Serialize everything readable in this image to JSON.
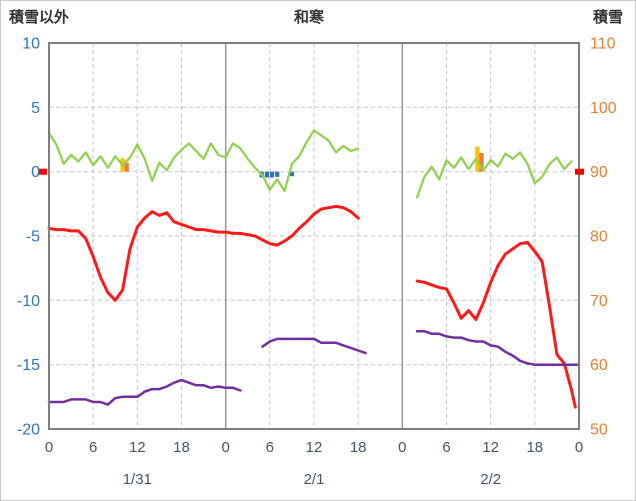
{
  "header": {
    "left_label": "積雪以外",
    "title": "和寒",
    "right_label": "積雪"
  },
  "chart_data": {
    "type": "line",
    "title": "和寒",
    "left_axis": {
      "label": "積雪以外",
      "ticks": [
        10,
        5,
        0,
        -5,
        -10,
        -15,
        -20
      ],
      "max": 10,
      "min": -20,
      "color": "#2E75B6"
    },
    "right_axis": {
      "label": "積雪",
      "ticks": [
        110,
        100,
        90,
        80,
        70,
        60,
        50
      ],
      "max": 110,
      "min": 50,
      "color": "#ED7D31"
    },
    "x_axis": {
      "hours_total": 72,
      "tick_hours": [
        0,
        6,
        12,
        18,
        24,
        30,
        36,
        42,
        48,
        54,
        60,
        66,
        72
      ],
      "tick_labels": [
        "0",
        "6",
        "12",
        "18",
        "0",
        "6",
        "12",
        "18",
        "0",
        "6",
        "12",
        "18",
        "0"
      ],
      "day_labels": [
        {
          "label": "1/31",
          "hour": 12
        },
        {
          "label": "2/1",
          "hour": 36
        },
        {
          "label": "2/2",
          "hour": 60
        }
      ],
      "color": "#44546A"
    },
    "colors": {
      "green": "#92D050",
      "red": "#FF1A1A",
      "purple": "#7030A0",
      "yellow": "#FFC000",
      "orange": "#ED7D31",
      "blue": "#2E74B5",
      "grid": "#C6C6C6",
      "frame": "#7F7F7F",
      "day_line": "#8C8C8C",
      "marker": "#FF0000"
    },
    "series": [
      {
        "name": "green-line",
        "axis": "left",
        "color": "#92D050",
        "width": 2.25,
        "segments": [
          [
            [
              0,
              3.0
            ],
            [
              1,
              2.1
            ],
            [
              2,
              0.6
            ],
            [
              3,
              1.3
            ],
            [
              4,
              0.8
            ],
            [
              5,
              1.5
            ],
            [
              6,
              0.5
            ],
            [
              7,
              1.2
            ],
            [
              8,
              0.3
            ],
            [
              9,
              1.2
            ],
            [
              10,
              0.5
            ],
            [
              11,
              1.1
            ],
            [
              12,
              2.1
            ],
            [
              13,
              1.0
            ],
            [
              14,
              -0.7
            ],
            [
              15,
              0.7
            ],
            [
              16,
              0.1
            ],
            [
              17,
              1.1
            ],
            [
              18,
              1.7
            ],
            [
              19,
              2.2
            ],
            [
              20,
              1.6
            ],
            [
              21,
              1.0
            ],
            [
              22,
              2.2
            ],
            [
              23,
              1.3
            ],
            [
              24,
              1.1
            ],
            [
              25,
              2.2
            ],
            [
              26,
              1.8
            ],
            [
              27,
              1.0
            ],
            [
              28,
              0.3
            ],
            [
              29,
              -0.3
            ],
            [
              30,
              -1.4
            ],
            [
              31,
              -0.6
            ],
            [
              32,
              -1.5
            ],
            [
              33,
              0.6
            ],
            [
              34,
              1.2
            ],
            [
              35,
              2.3
            ],
            [
              36,
              3.2
            ],
            [
              37,
              2.8
            ],
            [
              38,
              2.4
            ],
            [
              39,
              1.5
            ],
            [
              40,
              2.0
            ],
            [
              41,
              1.6
            ],
            [
              42,
              1.8
            ]
          ],
          [
            [
              50,
              -2.0
            ],
            [
              51,
              -0.4
            ],
            [
              52,
              0.4
            ],
            [
              53,
              -0.6
            ],
            [
              54,
              0.9
            ],
            [
              55,
              0.3
            ],
            [
              56,
              1.1
            ],
            [
              57,
              0.2
            ],
            [
              58,
              1.0
            ],
            [
              59,
              0.1
            ],
            [
              60,
              0.9
            ],
            [
              61,
              0.4
            ],
            [
              62,
              1.4
            ],
            [
              63,
              1.0
            ],
            [
              64,
              1.5
            ],
            [
              65,
              0.6
            ],
            [
              66,
              -0.9
            ],
            [
              67,
              -0.4
            ],
            [
              68,
              0.6
            ],
            [
              69,
              1.1
            ],
            [
              70,
              0.2
            ],
            [
              71,
              0.8
            ]
          ]
        ]
      },
      {
        "name": "red-line",
        "axis": "left",
        "color": "#FF1A1A",
        "width": 3,
        "segments": [
          [
            [
              0,
              -4.4
            ],
            [
              1,
              -4.5
            ],
            [
              2,
              -4.5
            ],
            [
              3,
              -4.6
            ],
            [
              4,
              -4.6
            ],
            [
              5,
              -5.2
            ],
            [
              6,
              -6.6
            ],
            [
              7,
              -8.2
            ],
            [
              8,
              -9.4
            ],
            [
              9,
              -10.0
            ],
            [
              10,
              -9.2
            ],
            [
              11,
              -6.0
            ],
            [
              12,
              -4.3
            ],
            [
              13,
              -3.6
            ],
            [
              14,
              -3.1
            ],
            [
              15,
              -3.4
            ],
            [
              16,
              -3.2
            ],
            [
              17,
              -3.9
            ],
            [
              18,
              -4.1
            ],
            [
              19,
              -4.3
            ],
            [
              20,
              -4.5
            ],
            [
              21,
              -4.5
            ],
            [
              22,
              -4.6
            ],
            [
              23,
              -4.7
            ],
            [
              24,
              -4.7
            ],
            [
              25,
              -4.8
            ],
            [
              26,
              -4.8
            ],
            [
              27,
              -4.9
            ],
            [
              28,
              -5.0
            ],
            [
              29,
              -5.3
            ],
            [
              30,
              -5.6
            ],
            [
              31,
              -5.7
            ],
            [
              32,
              -5.4
            ],
            [
              33,
              -5.0
            ],
            [
              34,
              -4.4
            ],
            [
              35,
              -3.9
            ],
            [
              36,
              -3.3
            ],
            [
              37,
              -2.9
            ],
            [
              38,
              -2.8
            ],
            [
              39,
              -2.7
            ],
            [
              40,
              -2.8
            ],
            [
              41,
              -3.1
            ],
            [
              42,
              -3.6
            ]
          ],
          [
            [
              50,
              -8.5
            ],
            [
              51,
              -8.6
            ],
            [
              52,
              -8.8
            ],
            [
              53,
              -9.0
            ],
            [
              54,
              -9.1
            ],
            [
              55,
              -10.2
            ],
            [
              56,
              -11.4
            ],
            [
              57,
              -10.8
            ],
            [
              58,
              -11.5
            ],
            [
              59,
              -10.2
            ],
            [
              60,
              -8.6
            ],
            [
              61,
              -7.3
            ],
            [
              62,
              -6.4
            ],
            [
              63,
              -6.0
            ],
            [
              64,
              -5.6
            ],
            [
              65,
              -5.5
            ],
            [
              66,
              -6.2
            ],
            [
              67,
              -7.0
            ],
            [
              68,
              -10.5
            ],
            [
              69,
              -14.2
            ],
            [
              70,
              -14.9
            ],
            [
              71,
              -17.0
            ],
            [
              71.5,
              -18.3
            ]
          ]
        ]
      },
      {
        "name": "purple-line",
        "axis": "right",
        "color": "#7030A0",
        "width": 2.5,
        "segments": [
          [
            [
              0,
              54.2
            ],
            [
              2,
              54.2
            ],
            [
              3,
              54.6
            ],
            [
              5,
              54.6
            ],
            [
              6,
              54.2
            ],
            [
              7,
              54.2
            ],
            [
              8,
              53.8
            ],
            [
              9,
              54.8
            ],
            [
              10,
              55.0
            ],
            [
              12,
              55.0
            ],
            [
              13,
              55.8
            ],
            [
              14,
              56.2
            ],
            [
              15,
              56.2
            ],
            [
              16,
              56.6
            ],
            [
              17,
              57.2
            ],
            [
              18,
              57.6
            ],
            [
              19,
              57.2
            ],
            [
              20,
              56.8
            ],
            [
              21,
              56.8
            ],
            [
              22,
              56.4
            ],
            [
              23,
              56.6
            ],
            [
              24,
              56.4
            ],
            [
              25,
              56.4
            ],
            [
              26,
              56.0
            ]
          ],
          [
            [
              29,
              62.8
            ],
            [
              30,
              63.6
            ],
            [
              31,
              64.0
            ],
            [
              36,
              64.0
            ],
            [
              37,
              63.4
            ],
            [
              39,
              63.4
            ],
            [
              40,
              63.0
            ],
            [
              41,
              62.6
            ],
            [
              42,
              62.2
            ],
            [
              43,
              61.8
            ]
          ],
          [
            [
              50,
              65.2
            ],
            [
              51,
              65.2
            ],
            [
              52,
              64.8
            ],
            [
              53,
              64.8
            ],
            [
              54,
              64.4
            ],
            [
              55,
              64.2
            ],
            [
              56,
              64.2
            ],
            [
              57,
              63.8
            ],
            [
              58,
              63.6
            ],
            [
              59,
              63.6
            ],
            [
              60,
              63.0
            ],
            [
              61,
              62.8
            ],
            [
              62,
              62.0
            ],
            [
              63,
              61.4
            ],
            [
              64,
              60.6
            ],
            [
              65,
              60.2
            ],
            [
              66,
              60.0
            ],
            [
              72,
              60.0
            ]
          ]
        ]
      }
    ],
    "bars": [
      {
        "color_key": "yellow",
        "hour": 10.0,
        "value": 1.05
      },
      {
        "color_key": "orange",
        "hour": 10.55,
        "value": 0.7
      },
      {
        "color_key": "blue",
        "hour": 28.9,
        "value": -0.45
      },
      {
        "color_key": "blue",
        "hour": 29.6,
        "value": -0.45
      },
      {
        "color_key": "blue",
        "hour": 30.3,
        "value": -0.45
      },
      {
        "color_key": "blue",
        "hour": 31.0,
        "value": -0.4
      },
      {
        "color_key": "blue",
        "hour": 33.0,
        "value": -0.35
      },
      {
        "color_key": "yellow",
        "hour": 58.2,
        "value": 1.95
      },
      {
        "color_key": "orange",
        "hour": 58.75,
        "value": 1.45
      }
    ],
    "zero_marker": {
      "value": 0
    }
  }
}
